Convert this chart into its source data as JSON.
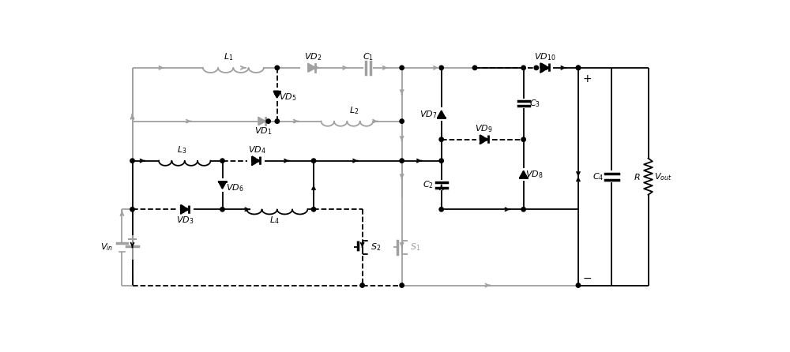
{
  "fig_width": 10.0,
  "fig_height": 4.46,
  "dpi": 100,
  "gray": "#a0a0a0",
  "black": "#000000",
  "bg": "#ffffff",
  "lw": 1.3
}
